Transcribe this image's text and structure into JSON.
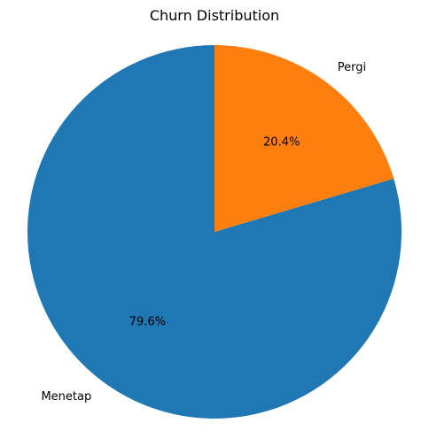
{
  "chart_data": {
    "type": "pie",
    "title": "Churn Distribution",
    "slices": [
      {
        "label": "Menetap",
        "value": 79.6,
        "pct_label": "79.6%",
        "color": "#1f77b4"
      },
      {
        "label": "Pergi",
        "value": 20.4,
        "pct_label": "20.4%",
        "color": "#ff7f0e"
      }
    ],
    "start_angle": 90,
    "direction": "counterclockwise",
    "legend": "none"
  }
}
